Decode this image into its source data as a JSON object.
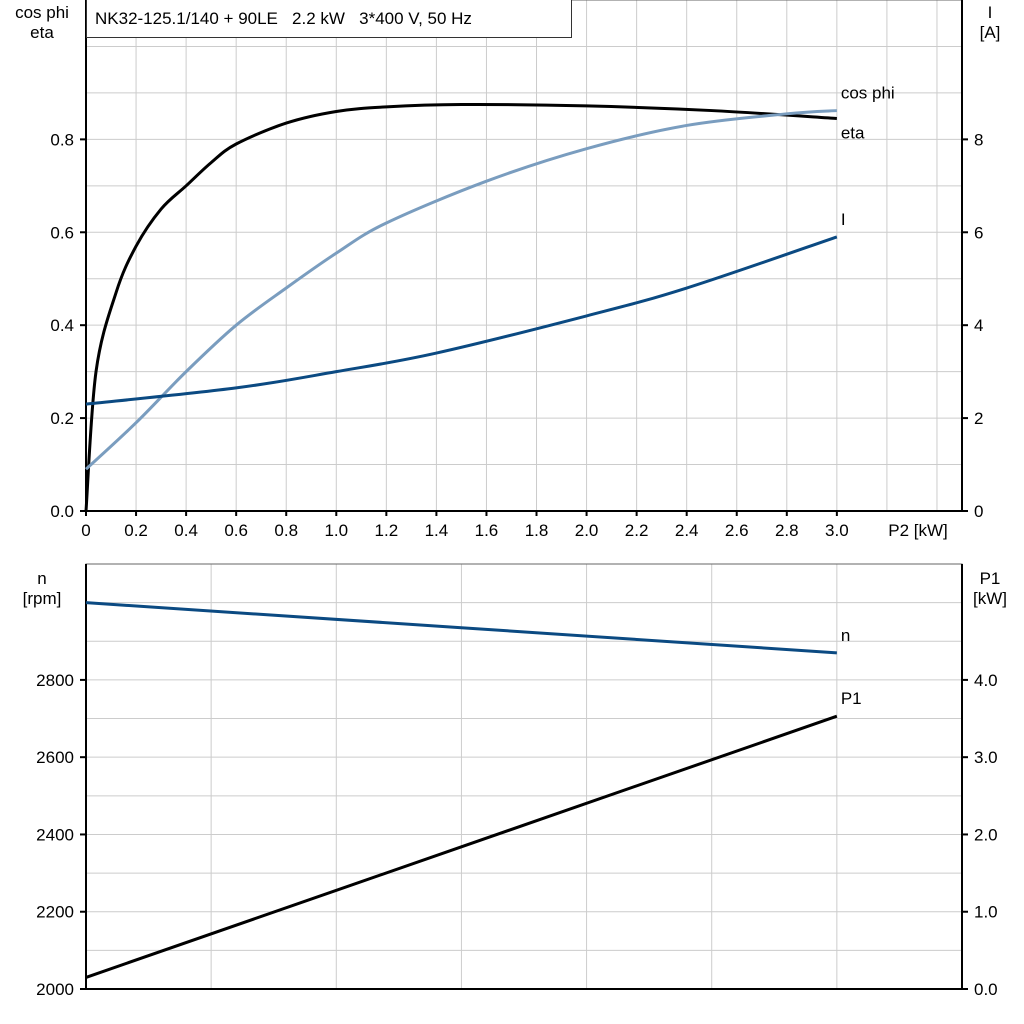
{
  "title": "NK32-125.1/140 + 90LE   2.2 kW   3*400 V, 50 Hz",
  "colors": {
    "eta": "#000000",
    "cos_phi": "#7a9dbf",
    "I": "#0b4a82",
    "n": "#0b4a82",
    "P1": "#000000",
    "grid": "#cccccc"
  },
  "chart_data": [
    {
      "type": "line",
      "xlabel": "P2 [kW]",
      "ylabel_left": [
        "cos phi",
        "eta"
      ],
      "ylabel_right": [
        "I",
        "[A]"
      ],
      "xlim": [
        0,
        3.5
      ],
      "ylim_left": [
        0,
        1.1
      ],
      "ylim_right": [
        0,
        11
      ],
      "x_ticks": [
        "0",
        "0.2",
        "0.4",
        "0.6",
        "0.8",
        "1.0",
        "1.2",
        "1.4",
        "1.6",
        "1.8",
        "2.0",
        "2.2",
        "2.4",
        "2.6",
        "2.8",
        "3.0"
      ],
      "y_ticks_left": [
        "0.0",
        "0.2",
        "0.4",
        "0.6",
        "0.8"
      ],
      "y_ticks_right": [
        "0",
        "2",
        "4",
        "6",
        "8"
      ],
      "grid": true,
      "series": [
        {
          "name": "eta",
          "axis": "left",
          "x": [
            0,
            0.04,
            0.12,
            0.2,
            0.3,
            0.4,
            0.5,
            0.6,
            0.8,
            1.0,
            1.2,
            1.5,
            2.0,
            2.5,
            3.0
          ],
          "y": [
            0,
            0.3,
            0.47,
            0.57,
            0.65,
            0.7,
            0.75,
            0.79,
            0.835,
            0.86,
            0.87,
            0.875,
            0.872,
            0.862,
            0.845
          ]
        },
        {
          "name": "cos phi",
          "axis": "left",
          "x": [
            0,
            0.2,
            0.4,
            0.6,
            0.8,
            1.0,
            1.2,
            1.6,
            2.0,
            2.4,
            2.8,
            3.0
          ],
          "y": [
            0.09,
            0.19,
            0.3,
            0.4,
            0.48,
            0.555,
            0.62,
            0.71,
            0.78,
            0.83,
            0.855,
            0.862
          ]
        },
        {
          "name": "I",
          "axis": "right",
          "x": [
            0,
            0.6,
            1.0,
            1.4,
            2.0,
            2.4,
            3.0
          ],
          "y": [
            2.3,
            2.65,
            3.0,
            3.4,
            4.2,
            4.8,
            5.9
          ]
        }
      ]
    },
    {
      "type": "line",
      "ylabel_left": [
        "n",
        "[rpm]"
      ],
      "ylabel_right": [
        "P1",
        "[kW]"
      ],
      "xlim": [
        0,
        3.5
      ],
      "ylim_left": [
        2000,
        3100
      ],
      "ylim_right": [
        0,
        5.5
      ],
      "y_ticks_left": [
        "2000",
        "2200",
        "2400",
        "2600",
        "2800"
      ],
      "y_ticks_right": [
        "0.0",
        "1.0",
        "2.0",
        "3.0",
        "4.0"
      ],
      "grid": true,
      "series": [
        {
          "name": "n",
          "axis": "left",
          "x": [
            0,
            3.0
          ],
          "y": [
            3000,
            2870
          ]
        },
        {
          "name": "P1",
          "axis": "right",
          "x": [
            0,
            3.0
          ],
          "y": [
            0.15,
            3.53
          ]
        }
      ]
    }
  ]
}
